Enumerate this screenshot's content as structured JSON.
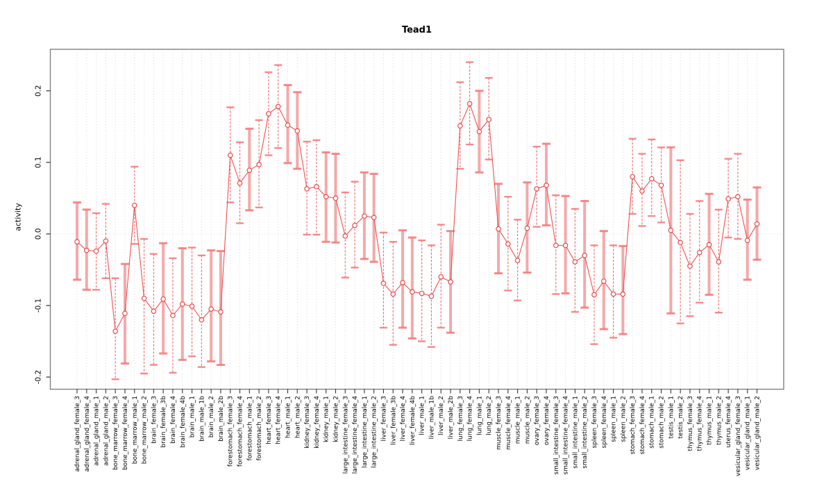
{
  "figure": {
    "title": "Tead1",
    "y_axis_label": "activity"
  },
  "colors": {
    "series_red": "#ee5050",
    "point_red": "#e84a4a",
    "thick_bar_pink": "#f5a0a0",
    "cap_pink": "#f47d7d",
    "grid_gray": "#d8d8d8",
    "frame_gray": "#808080",
    "tick_dark": "#333333",
    "text_black": "#000000"
  },
  "chart_data": {
    "type": "scatter",
    "title": "Tead1",
    "xlabel": "",
    "ylabel": "activity",
    "ylim": [
      -0.217,
      0.258
    ],
    "yticks": [
      -0.2,
      -0.1,
      0.0,
      0.1,
      0.2
    ],
    "ytick_labels": [
      "-0.2",
      "-0.1",
      "0.0",
      "0.1",
      "0.2"
    ],
    "grid": "dotted vertical gridline per category, dotted horizontal line at y=0",
    "legend_position": "none",
    "series_name": "activity",
    "marker": "open-circle",
    "connected": true,
    "error_bars": true,
    "categories": [
      "adrenal_gland_female_3",
      "adrenal_gland_female_4",
      "adrenal_gland_male_1",
      "adrenal_gland_male_2",
      "bone_marrow_female_3",
      "bone_marrow_female_4",
      "bone_marrow_male_1",
      "bone_marrow_male_2",
      "brain_female_3",
      "brain_female_3b",
      "brain_female_4",
      "brain_female_4b",
      "brain_male_1",
      "brain_male_1b",
      "brain_male_2",
      "brain_male_2b",
      "forestomach_female_3",
      "forestomach_female_4",
      "forestomach_male_1",
      "forestomach_male_2",
      "heart_female_3",
      "heart_female_4",
      "heart_male_1",
      "heart_male_2",
      "kidney_female_3",
      "kidney_female_4",
      "kidney_male_1",
      "kidney_male_2",
      "large_intestine_female_3",
      "large_intestine_female_4",
      "large_intestine_male_1",
      "large_intestine_male_2",
      "liver_female_3",
      "liver_female_3b",
      "liver_female_4",
      "liver_female_4b",
      "liver_male_1",
      "liver_male_1b",
      "liver_male_2",
      "liver_male_2b",
      "lung_female_3",
      "lung_female_4",
      "lung_male_1",
      "lung_male_2",
      "muscle_female_3",
      "muscle_female_4",
      "muscle_male_1",
      "muscle_male_2",
      "ovary_female_3",
      "ovary_female_4",
      "small_intestine_female_3",
      "small_intestine_female_4",
      "small_intestine_male_1",
      "small_intestine_male_2",
      "spleen_female_3",
      "spleen_female_4",
      "spleen_male_1",
      "spleen_male_2",
      "stomach_female_3",
      "stomach_female_4",
      "stomach_male_1",
      "stomach_male_2",
      "testis_male_1",
      "testis_male_2",
      "thymus_female_3",
      "thymus_female_4",
      "thymus_male_1",
      "thymus_male_2",
      "uterus_female_4",
      "vesicular_gland_female_3",
      "vesicular_gland_male_1",
      "vesicular_gland_male_2"
    ],
    "values": [
      -0.011,
      -0.023,
      -0.024,
      -0.01,
      -0.136,
      -0.111,
      0.04,
      -0.09,
      -0.108,
      -0.091,
      -0.114,
      -0.098,
      -0.101,
      -0.12,
      -0.105,
      -0.109,
      0.11,
      0.071,
      0.089,
      0.097,
      0.168,
      0.178,
      0.152,
      0.144,
      0.063,
      0.066,
      0.052,
      0.05,
      -0.003,
      0.012,
      0.025,
      0.023,
      -0.069,
      -0.084,
      -0.068,
      -0.081,
      -0.083,
      -0.087,
      -0.06,
      -0.067,
      0.151,
      0.182,
      0.143,
      0.16,
      0.007,
      -0.014,
      -0.037,
      0.008,
      0.063,
      0.068,
      -0.016,
      -0.016,
      -0.039,
      -0.03,
      -0.085,
      -0.066,
      -0.084,
      -0.084,
      0.08,
      0.06,
      0.077,
      0.068,
      0.005,
      -0.012,
      -0.045,
      -0.026,
      -0.015,
      -0.039,
      0.049,
      0.052,
      -0.009,
      0.014
    ],
    "err_low": [
      -0.064,
      -0.078,
      -0.078,
      -0.062,
      -0.203,
      -0.181,
      -0.014,
      -0.195,
      -0.183,
      -0.167,
      -0.194,
      -0.176,
      -0.171,
      -0.186,
      -0.178,
      -0.183,
      0.044,
      0.015,
      0.033,
      0.037,
      0.11,
      0.12,
      0.099,
      0.091,
      -0.001,
      -0.001,
      -0.011,
      -0.012,
      -0.061,
      -0.047,
      -0.035,
      -0.039,
      -0.131,
      -0.155,
      -0.131,
      -0.146,
      -0.15,
      -0.158,
      -0.131,
      -0.138,
      0.091,
      0.125,
      0.086,
      0.104,
      -0.055,
      -0.079,
      -0.093,
      -0.054,
      0.01,
      0.012,
      -0.084,
      -0.083,
      -0.109,
      -0.103,
      -0.154,
      -0.133,
      -0.145,
      -0.14,
      0.028,
      0.011,
      0.025,
      0.016,
      -0.111,
      -0.125,
      -0.115,
      -0.096,
      -0.085,
      -0.11,
      -0.005,
      -0.007,
      -0.064,
      -0.036
    ],
    "err_high": [
      0.044,
      0.034,
      0.029,
      0.042,
      -0.062,
      -0.042,
      0.094,
      -0.007,
      -0.028,
      -0.013,
      -0.034,
      -0.02,
      -0.019,
      -0.03,
      -0.023,
      -0.024,
      0.177,
      0.128,
      0.147,
      0.159,
      0.226,
      0.236,
      0.208,
      0.198,
      0.129,
      0.131,
      0.114,
      0.112,
      0.058,
      0.073,
      0.086,
      0.084,
      0.002,
      -0.011,
      0.005,
      -0.005,
      -0.009,
      -0.016,
      0.013,
      0.004,
      0.212,
      0.24,
      0.2,
      0.218,
      0.07,
      0.052,
      0.02,
      0.072,
      0.122,
      0.126,
      0.054,
      0.053,
      0.035,
      0.046,
      -0.016,
      0.004,
      -0.016,
      -0.017,
      0.133,
      0.112,
      0.132,
      0.121,
      0.121,
      0.103,
      0.028,
      0.046,
      0.056,
      0.034,
      0.105,
      0.112,
      0.048,
      0.065
    ],
    "thick_bar": [
      1,
      1,
      0,
      0,
      0,
      1,
      0,
      0,
      0,
      1,
      0,
      1,
      0,
      0,
      1,
      1,
      0,
      0,
      1,
      0,
      0,
      0,
      1,
      1,
      0,
      0,
      1,
      1,
      0,
      0,
      1,
      1,
      0,
      0,
      1,
      1,
      0,
      0,
      0,
      1,
      0,
      0,
      1,
      0,
      1,
      0,
      0,
      1,
      0,
      1,
      0,
      1,
      0,
      1,
      0,
      1,
      0,
      1,
      0,
      0,
      0,
      0,
      1,
      0,
      0,
      0,
      1,
      0,
      0,
      0,
      1,
      1
    ]
  }
}
